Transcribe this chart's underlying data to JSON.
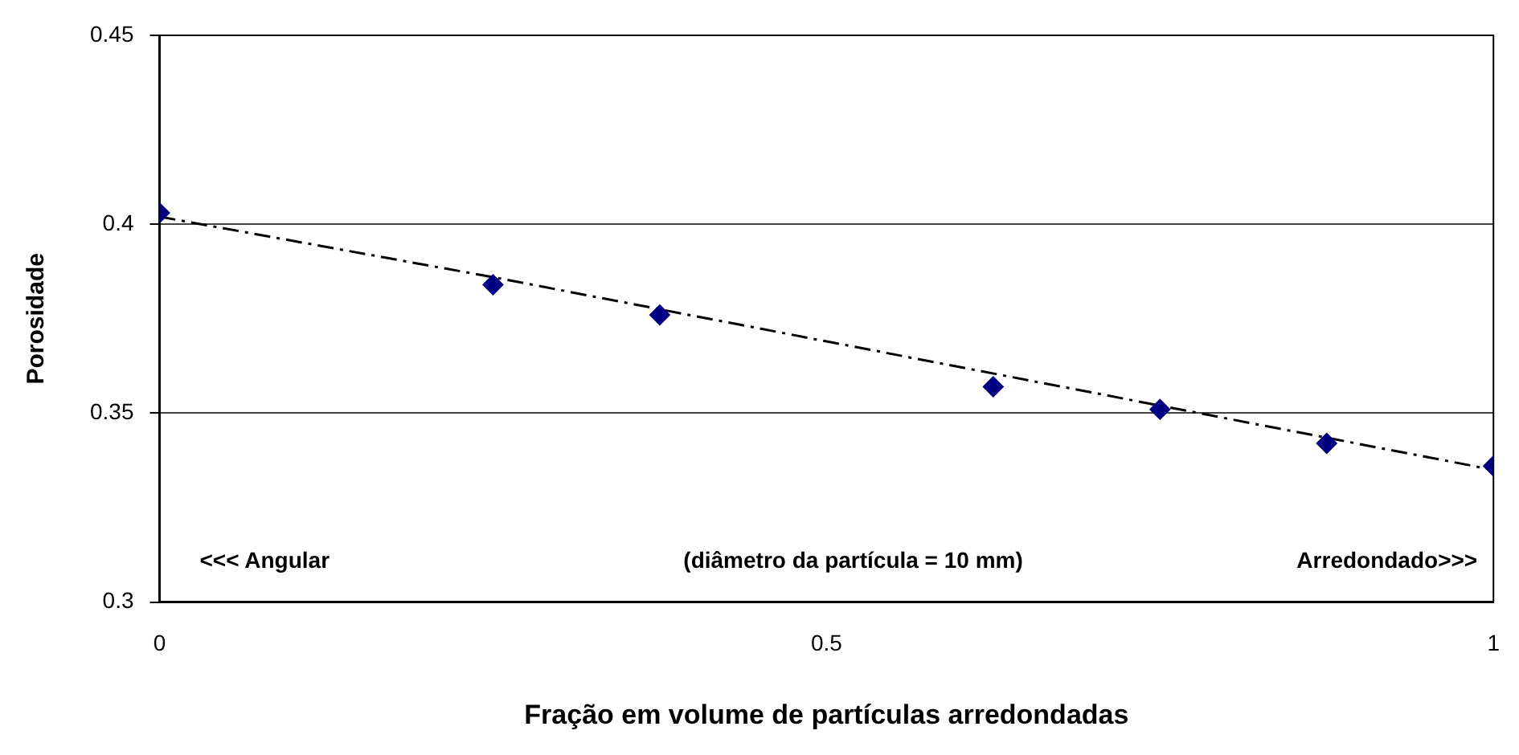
{
  "chart_data": {
    "type": "scatter",
    "xlabel": "Fração em volume de partículas arredondadas",
    "ylabel": "Porosidade",
    "annotations": [
      "<<< Angular",
      "(diâmetro da partícula = 10 mm)",
      "Arredondado>>>"
    ],
    "series": [
      {
        "color": "#000080",
        "marker": "diamond",
        "x": [
          0,
          0.25,
          0.375,
          0.625,
          0.75,
          0.875,
          1
        ],
        "values": [
          0.403,
          0.384,
          0.376,
          0.357,
          0.351,
          0.342,
          0.336
        ]
      },
      {
        "type": "line",
        "color": "#000000",
        "line_style": "dashed",
        "marker": "none",
        "x": [
          0,
          0.25,
          0.5,
          0.75,
          1
        ],
        "values": [
          0.402,
          0.386,
          0.369,
          0.352,
          0.335
        ]
      }
    ],
    "xlim": [
      0,
      1
    ],
    "xticks": [
      0,
      0.5,
      1
    ],
    "ylim": [
      0.3,
      0.45
    ],
    "yticks": [
      0.3,
      0.35,
      0.4,
      0.45
    ],
    "grid": "y",
    "legend": false
  }
}
